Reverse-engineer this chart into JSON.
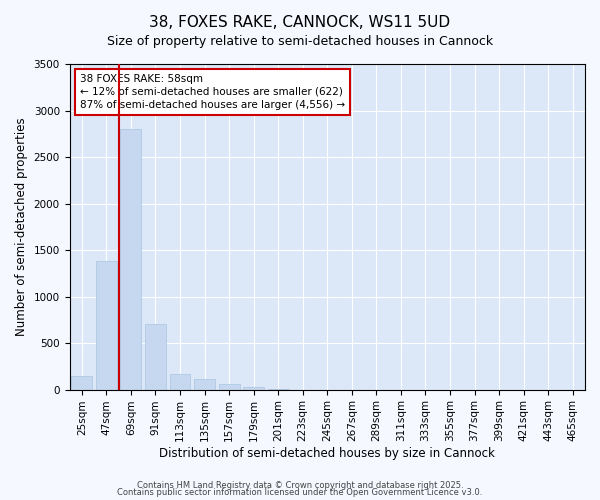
{
  "title": "38, FOXES RAKE, CANNOCK, WS11 5UD",
  "subtitle": "Size of property relative to semi-detached houses in Cannock",
  "xlabel": "Distribution of semi-detached houses by size in Cannock",
  "ylabel": "Number of semi-detached properties",
  "categories": [
    "25sqm",
    "47sqm",
    "69sqm",
    "91sqm",
    "113sqm",
    "135sqm",
    "157sqm",
    "179sqm",
    "201sqm",
    "223sqm",
    "245sqm",
    "267sqm",
    "289sqm",
    "311sqm",
    "333sqm",
    "355sqm",
    "377sqm",
    "399sqm",
    "421sqm",
    "443sqm",
    "465sqm"
  ],
  "values": [
    150,
    1380,
    2800,
    700,
    170,
    110,
    55,
    30,
    10,
    0,
    0,
    0,
    0,
    0,
    0,
    0,
    0,
    0,
    0,
    0,
    0
  ],
  "bar_color": "#c5d8ef",
  "bar_edgecolor": "#a8c4e0",
  "ylim": [
    0,
    3500
  ],
  "yticks": [
    0,
    500,
    1000,
    1500,
    2000,
    2500,
    3000,
    3500
  ],
  "vline_x_index": 1.5,
  "vline_color": "#cc0000",
  "annotation_text": "38 FOXES RAKE: 58sqm\n← 12% of semi-detached houses are smaller (622)\n87% of semi-detached houses are larger (4,556) →",
  "annotation_box_edgecolor": "#cc0000",
  "background_color": "#f5f8ff",
  "plot_bg_color": "#dce8f8",
  "footer1": "Contains HM Land Registry data © Crown copyright and database right 2025.",
  "footer2": "Contains public sector information licensed under the Open Government Licence v3.0.",
  "title_fontsize": 11,
  "subtitle_fontsize": 9,
  "axis_label_fontsize": 8.5,
  "tick_fontsize": 7.5,
  "annotation_fontsize": 7.5,
  "footer_fontsize": 6
}
